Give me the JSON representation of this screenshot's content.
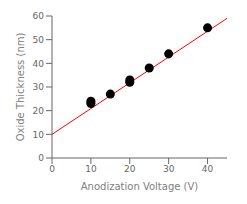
{
  "chart_data": {
    "type": "scatter",
    "xlabel": "Anodization Voltage (V)",
    "ylabel": "Oxide Thickness (nm)",
    "xlim": [
      0,
      45
    ],
    "ylim": [
      0,
      60
    ],
    "xticks": [
      0,
      10,
      20,
      30,
      40
    ],
    "yticks": [
      0,
      10,
      20,
      30,
      40,
      50,
      60
    ],
    "series": [
      {
        "type": "line",
        "color": "#ff0000",
        "x": [
          0,
          45
        ],
        "values": [
          10.0,
          59.0
        ]
      },
      {
        "type": "scatter",
        "color": "black",
        "marker": "circle",
        "x": [
          10,
          10,
          15,
          20,
          20,
          25,
          30,
          40
        ],
        "values": [
          23.0,
          24.0,
          27.0,
          32.0,
          33.0,
          38.0,
          44.0,
          55.0
        ],
        "yerr": [
          0.5,
          0.5,
          0.5,
          0.5,
          0.5,
          0.5,
          0.5,
          0.5
        ]
      }
    ]
  }
}
